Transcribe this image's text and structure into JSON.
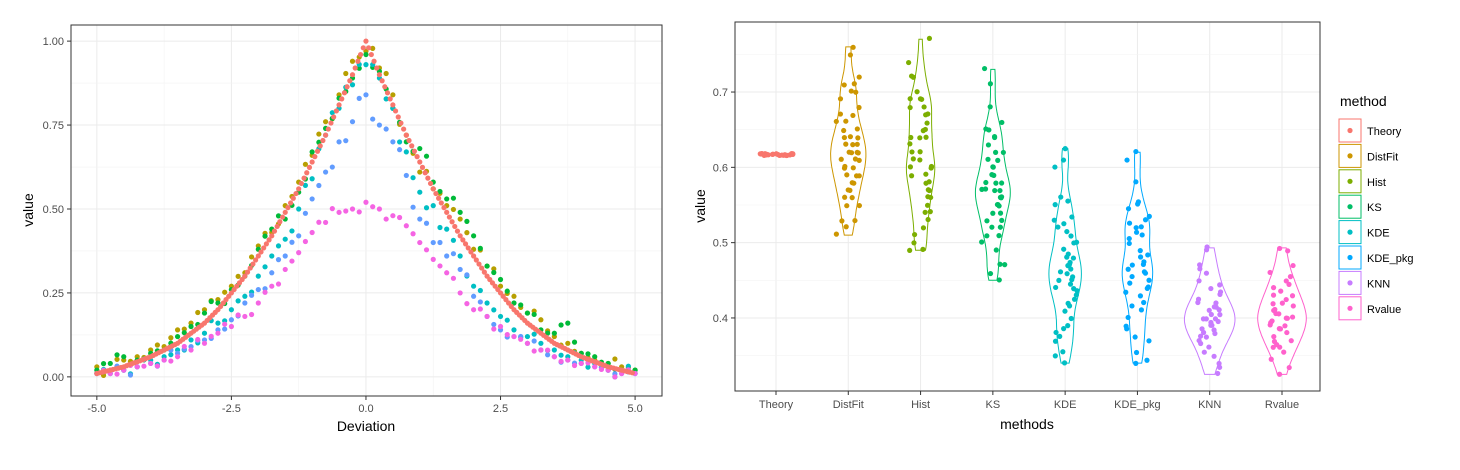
{
  "chart_data": [
    {
      "type": "scatter",
      "xlabel": "Deviation",
      "ylabel": "value",
      "xlim": [
        -5.48,
        5.5
      ],
      "ylim": [
        -0.057,
        1.048
      ],
      "xticks": [
        "-5.0",
        "-2.5",
        "0.0",
        "2.5",
        "5.0"
      ],
      "xtick_values": [
        -5,
        -2.5,
        0,
        2.5,
        5
      ],
      "yticks": [
        "0.00",
        "0.25",
        "0.50",
        "0.75",
        "1.00"
      ],
      "ytick_values": [
        0,
        0.25,
        0.5,
        0.75,
        1
      ],
      "grid": true,
      "legend": "none",
      "x": [
        -5,
        -4.75,
        -4.5,
        -4.25,
        -4,
        -3.75,
        -3.5,
        -3.25,
        -3,
        -2.75,
        -2.5,
        -2.25,
        -2,
        -1.75,
        -1.5,
        -1.25,
        -1,
        -0.75,
        -0.5,
        -0.25,
        0,
        0.25,
        0.5,
        0.75,
        1,
        1.25,
        1.5,
        1.75,
        2,
        2.25,
        2.5,
        2.75,
        3,
        3.25,
        3.5,
        3.75,
        4,
        4.25,
        4.5,
        4.75,
        5
      ],
      "series": [
        {
          "color": "#F8766D",
          "values": [
            0.01,
            0.02,
            0.03,
            0.045,
            0.06,
            0.08,
            0.1,
            0.13,
            0.16,
            0.2,
            0.25,
            0.3,
            0.36,
            0.42,
            0.49,
            0.56,
            0.64,
            0.72,
            0.81,
            0.9,
            1.0,
            0.9,
            0.81,
            0.72,
            0.64,
            0.56,
            0.49,
            0.42,
            0.36,
            0.3,
            0.25,
            0.2,
            0.16,
            0.13,
            0.1,
            0.08,
            0.06,
            0.045,
            0.03,
            0.02,
            0.01
          ]
        },
        {
          "color": "#B79F00",
          "values": [
            0.03,
            0.02,
            0.05,
            0.06,
            0.08,
            0.09,
            0.14,
            0.16,
            0.2,
            0.23,
            0.27,
            0.31,
            0.39,
            0.43,
            0.51,
            0.58,
            0.66,
            0.76,
            0.84,
            0.94,
            0.97,
            0.92,
            0.84,
            0.72,
            0.61,
            0.56,
            0.51,
            0.47,
            0.38,
            0.33,
            0.27,
            0.24,
            0.19,
            0.17,
            0.12,
            0.1,
            0.07,
            0.05,
            0.04,
            0.03,
            0.02
          ]
        },
        {
          "color": "#00BA38",
          "values": [
            0.02,
            0.04,
            0.06,
            0.05,
            0.07,
            0.08,
            0.12,
            0.15,
            0.19,
            0.22,
            0.26,
            0.3,
            0.38,
            0.44,
            0.47,
            0.55,
            0.67,
            0.74,
            0.83,
            0.89,
            0.96,
            0.91,
            0.8,
            0.7,
            0.68,
            0.58,
            0.53,
            0.49,
            0.42,
            0.33,
            0.29,
            0.22,
            0.19,
            0.14,
            0.13,
            0.16,
            0.07,
            0.06,
            0.04,
            0.02,
            0.02
          ]
        },
        {
          "color": "#00BFC4",
          "values": [
            0.01,
            0.01,
            0.02,
            0.03,
            0.05,
            0.06,
            0.08,
            0.11,
            0.13,
            0.16,
            0.2,
            0.24,
            0.3,
            0.36,
            0.41,
            0.5,
            0.59,
            0.72,
            0.8,
            0.87,
            0.93,
            0.89,
            0.8,
            0.67,
            0.55,
            0.51,
            0.44,
            0.36,
            0.27,
            0.22,
            0.18,
            0.14,
            0.12,
            0.1,
            0.08,
            0.06,
            0.05,
            0.04,
            0.02,
            0.02,
            0.01
          ]
        },
        {
          "color": "#619CFF",
          "values": [
            0.01,
            0.01,
            0.02,
            0.03,
            0.04,
            0.05,
            0.07,
            0.09,
            0.11,
            0.14,
            0.17,
            0.22,
            0.26,
            0.31,
            0.36,
            0.42,
            0.53,
            0.61,
            0.7,
            0.76,
            0.84,
            0.75,
            0.7,
            0.6,
            0.47,
            0.4,
            0.36,
            0.32,
            0.24,
            0.18,
            0.14,
            0.12,
            0.1,
            0.08,
            0.06,
            0.05,
            0.04,
            0.03,
            0.02,
            0.01,
            0.01
          ]
        },
        {
          "color": "#F564E3",
          "values": [
            0.01,
            0.01,
            0.02,
            0.03,
            0.04,
            0.05,
            0.06,
            0.08,
            0.1,
            0.13,
            0.15,
            0.18,
            0.22,
            0.27,
            0.32,
            0.37,
            0.43,
            0.46,
            0.49,
            0.5,
            0.52,
            0.5,
            0.48,
            0.45,
            0.4,
            0.35,
            0.31,
            0.25,
            0.2,
            0.18,
            0.15,
            0.12,
            0.1,
            0.08,
            0.06,
            0.05,
            0.04,
            0.03,
            0.02,
            0.01,
            0.01
          ]
        }
      ]
    },
    {
      "type": "violin",
      "xlabel": "methods",
      "ylabel": "value",
      "ylim": [
        0.303,
        0.793
      ],
      "yticks": [
        "0.4",
        "0.5",
        "0.6",
        "0.7"
      ],
      "ytick_values": [
        0.4,
        0.5,
        0.6,
        0.7
      ],
      "grid": true,
      "legend": "right",
      "legend_title": "method",
      "categories": [
        "Theory",
        "DistFit",
        "Hist",
        "KS",
        "KDE",
        "KDE_pkg",
        "KNN",
        "Rvalue"
      ],
      "series": [
        {
          "name": "Theory",
          "color": "#F8766D",
          "values": [
            0.617,
            0.617,
            0.617,
            0.617,
            0.617,
            0.617,
            0.617,
            0.617,
            0.617,
            0.617,
            0.617,
            0.617,
            0.617,
            0.617,
            0.617,
            0.617,
            0.617,
            0.617,
            0.617,
            0.617,
            0.617,
            0.617,
            0.617,
            0.617,
            0.617
          ]
        },
        {
          "name": "DistFit",
          "color": "#CD9600",
          "values": [
            0.51,
            0.52,
            0.53,
            0.53,
            0.55,
            0.55,
            0.56,
            0.56,
            0.57,
            0.57,
            0.58,
            0.58,
            0.59,
            0.59,
            0.59,
            0.6,
            0.6,
            0.6,
            0.61,
            0.61,
            0.61,
            0.62,
            0.62,
            0.62,
            0.62,
            0.63,
            0.63,
            0.63,
            0.64,
            0.64,
            0.64,
            0.65,
            0.65,
            0.66,
            0.66,
            0.67,
            0.67,
            0.68,
            0.69,
            0.7,
            0.7,
            0.71,
            0.71,
            0.72,
            0.75,
            0.76
          ]
        },
        {
          "name": "Hist",
          "color": "#7CAE00",
          "values": [
            0.49,
            0.49,
            0.5,
            0.51,
            0.52,
            0.53,
            0.54,
            0.54,
            0.55,
            0.56,
            0.56,
            0.57,
            0.57,
            0.58,
            0.58,
            0.59,
            0.59,
            0.6,
            0.6,
            0.6,
            0.6,
            0.61,
            0.61,
            0.62,
            0.62,
            0.63,
            0.64,
            0.64,
            0.64,
            0.65,
            0.65,
            0.66,
            0.67,
            0.67,
            0.68,
            0.68,
            0.69,
            0.69,
            0.69,
            0.7,
            0.72,
            0.72,
            0.74,
            0.77
          ]
        },
        {
          "name": "KS",
          "color": "#00BE67",
          "values": [
            0.45,
            0.46,
            0.47,
            0.47,
            0.49,
            0.5,
            0.51,
            0.51,
            0.52,
            0.52,
            0.53,
            0.53,
            0.54,
            0.54,
            0.55,
            0.55,
            0.55,
            0.56,
            0.56,
            0.56,
            0.57,
            0.57,
            0.57,
            0.57,
            0.58,
            0.58,
            0.58,
            0.59,
            0.59,
            0.6,
            0.6,
            0.61,
            0.61,
            0.62,
            0.62,
            0.63,
            0.64,
            0.64,
            0.65,
            0.65,
            0.66,
            0.68,
            0.71,
            0.73
          ]
        },
        {
          "name": "KDE",
          "color": "#00BFC4",
          "values": [
            0.34,
            0.35,
            0.355,
            0.37,
            0.375,
            0.38,
            0.385,
            0.39,
            0.4,
            0.41,
            0.415,
            0.42,
            0.425,
            0.43,
            0.435,
            0.44,
            0.44,
            0.445,
            0.45,
            0.45,
            0.455,
            0.46,
            0.46,
            0.465,
            0.47,
            0.47,
            0.475,
            0.48,
            0.48,
            0.485,
            0.49,
            0.5,
            0.5,
            0.51,
            0.515,
            0.52,
            0.525,
            0.53,
            0.535,
            0.55,
            0.555,
            0.56,
            0.6,
            0.61,
            0.625
          ]
        },
        {
          "name": "KDE_pkg",
          "color": "#00A9FF",
          "values": [
            0.34,
            0.345,
            0.355,
            0.37,
            0.375,
            0.385,
            0.39,
            0.4,
            0.41,
            0.415,
            0.42,
            0.43,
            0.435,
            0.44,
            0.44,
            0.445,
            0.45,
            0.455,
            0.46,
            0.46,
            0.465,
            0.47,
            0.47,
            0.475,
            0.48,
            0.485,
            0.49,
            0.5,
            0.505,
            0.51,
            0.515,
            0.52,
            0.52,
            0.525,
            0.53,
            0.535,
            0.545,
            0.55,
            0.555,
            0.58,
            0.61,
            0.62
          ]
        },
        {
          "name": "KNN",
          "color": "#C77CFF",
          "values": [
            0.325,
            0.335,
            0.34,
            0.35,
            0.355,
            0.36,
            0.365,
            0.37,
            0.375,
            0.375,
            0.38,
            0.38,
            0.385,
            0.385,
            0.39,
            0.39,
            0.395,
            0.395,
            0.4,
            0.4,
            0.4,
            0.405,
            0.405,
            0.41,
            0.41,
            0.415,
            0.415,
            0.42,
            0.42,
            0.425,
            0.43,
            0.435,
            0.44,
            0.445,
            0.45,
            0.46,
            0.465,
            0.47,
            0.49,
            0.493
          ]
        },
        {
          "name": "Rvalue",
          "color": "#FF61CC",
          "values": [
            0.325,
            0.335,
            0.345,
            0.355,
            0.36,
            0.36,
            0.365,
            0.37,
            0.37,
            0.375,
            0.38,
            0.385,
            0.385,
            0.39,
            0.39,
            0.395,
            0.395,
            0.4,
            0.4,
            0.4,
            0.405,
            0.405,
            0.41,
            0.41,
            0.415,
            0.42,
            0.42,
            0.425,
            0.43,
            0.43,
            0.435,
            0.44,
            0.445,
            0.45,
            0.455,
            0.46,
            0.47,
            0.49,
            0.493
          ]
        }
      ]
    }
  ]
}
